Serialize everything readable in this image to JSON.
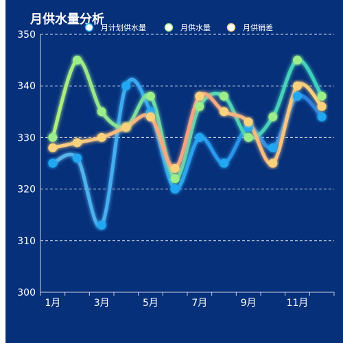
{
  "chart_data": {
    "type": "line",
    "title": "月供水量分析",
    "categories": [
      "1月",
      "2月",
      "3月",
      "4月",
      "5月",
      "6月",
      "7月",
      "8月",
      "9月",
      "10月",
      "11月",
      "12月"
    ],
    "x_tick_labels": [
      "1月",
      "3月",
      "5月",
      "7月",
      "9月",
      "11月"
    ],
    "ylim": [
      300,
      350
    ],
    "yticks": [
      300,
      310,
      320,
      330,
      340,
      350
    ],
    "grid": true,
    "legend_position": "top",
    "series": [
      {
        "name": "月计划供水量",
        "color": "#24a8f2",
        "values": [
          325,
          326,
          313,
          340,
          335,
          320,
          330,
          325,
          332,
          328,
          338,
          334
        ]
      },
      {
        "name": "月供水量",
        "color": "#9bee8a",
        "values": [
          330,
          345,
          335,
          332,
          338,
          322,
          336,
          338,
          330,
          334,
          345,
          338
        ]
      },
      {
        "name": "月供销差",
        "color": "#fbd27c",
        "values": [
          328,
          329,
          330,
          332,
          334,
          324,
          338,
          335,
          333,
          325,
          340,
          336
        ]
      }
    ]
  }
}
